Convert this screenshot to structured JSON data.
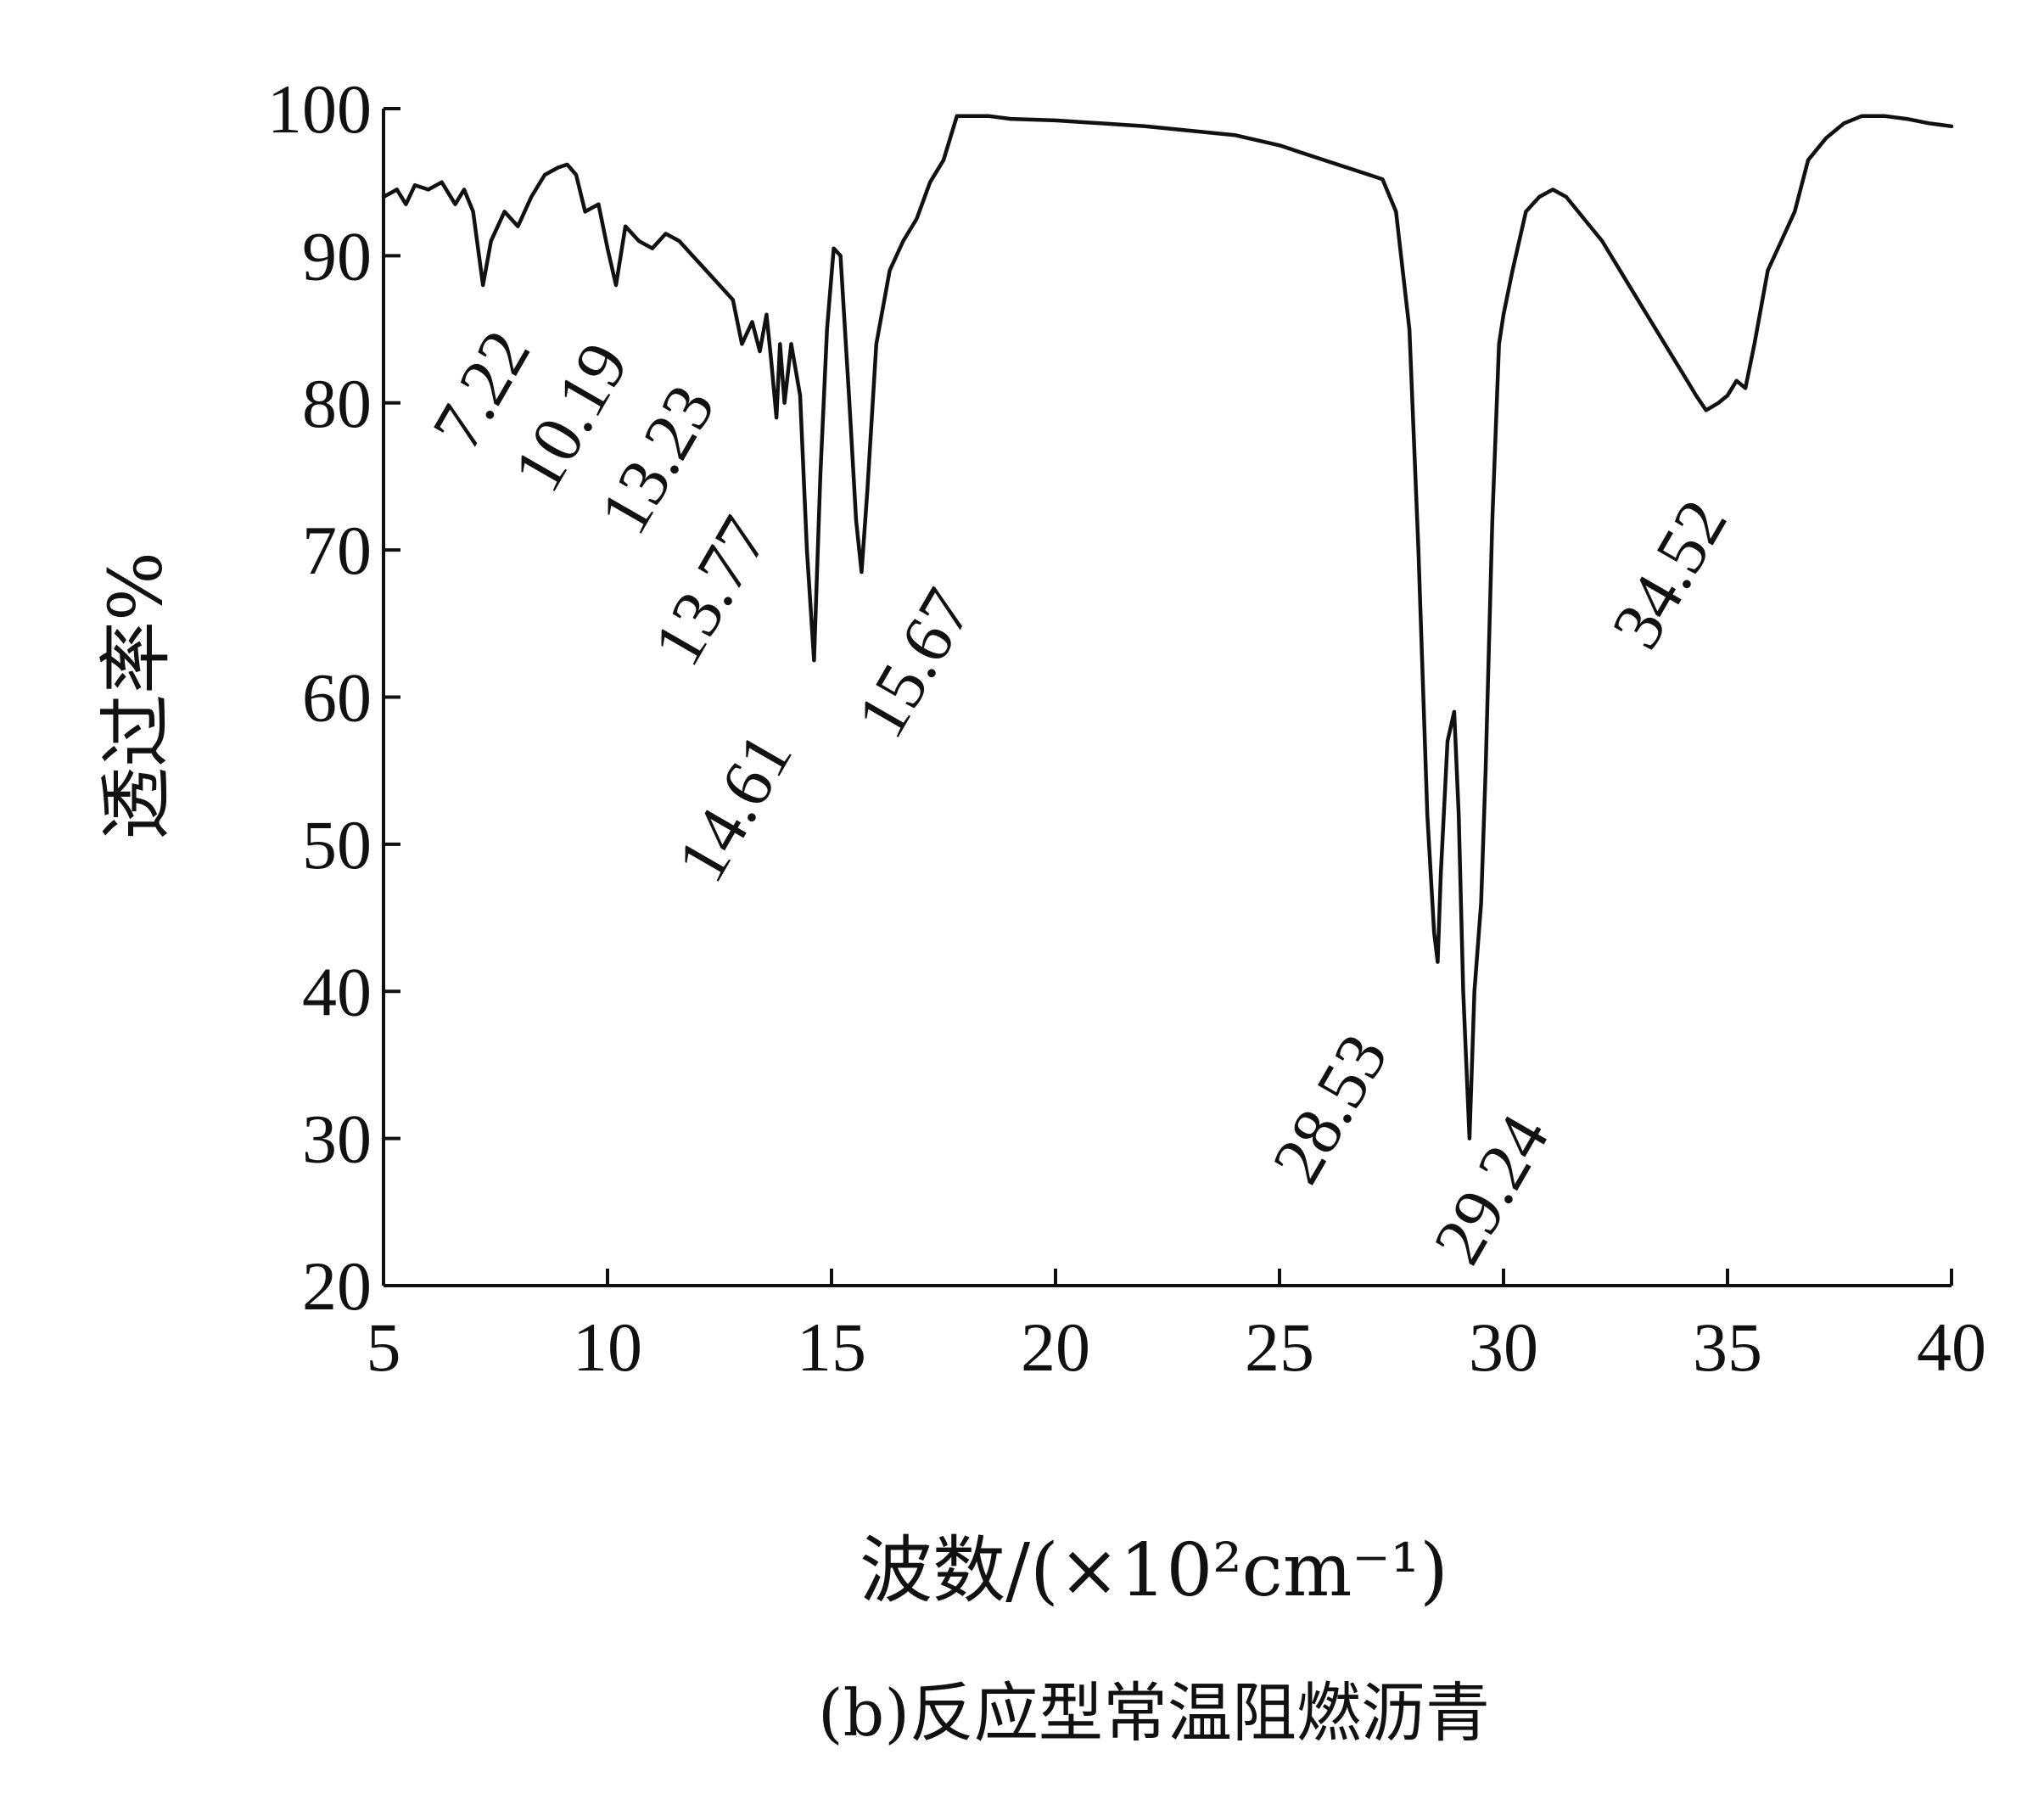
{
  "chart_data": {
    "type": "line",
    "title": "",
    "caption": "(b)反应型常温阻燃沥青",
    "xlabel": "波数/(×10²cm⁻¹)",
    "ylabel": "透过率%",
    "xlim": [
      5,
      40
    ],
    "ylim": [
      20,
      100
    ],
    "xticks": [
      5,
      10,
      15,
      20,
      25,
      30,
      35,
      40
    ],
    "yticks": [
      20,
      30,
      40,
      50,
      60,
      70,
      80,
      90,
      100
    ],
    "grid": false,
    "series": [
      {
        "x": [
          5.0,
          5.3,
          5.5,
          5.7,
          6.0,
          6.3,
          6.6,
          6.8,
          7.0,
          7.22,
          7.4,
          7.7,
          8.0,
          8.3,
          8.6,
          8.9,
          9.1,
          9.3,
          9.5,
          9.8,
          10.0,
          10.19,
          10.4,
          10.7,
          11.0,
          11.3,
          11.6,
          11.9,
          12.2,
          12.5,
          12.8,
          13.0,
          13.23,
          13.4,
          13.55,
          13.65,
          13.77,
          13.85,
          13.95,
          14.1,
          14.3,
          14.45,
          14.61,
          14.75,
          14.9,
          15.05,
          15.2,
          15.4,
          15.55,
          15.67,
          15.8,
          16.0,
          16.3,
          16.6,
          16.9,
          17.2,
          17.5,
          17.8,
          18.0,
          18.5,
          19.0,
          20.0,
          21.0,
          22.0,
          23.0,
          24.0,
          25.0,
          26.0,
          26.5,
          27.0,
          27.3,
          27.6,
          27.9,
          28.1,
          28.3,
          28.45,
          28.53,
          28.6,
          28.75,
          28.9,
          29.0,
          29.1,
          29.24,
          29.35,
          29.5,
          29.6,
          29.75,
          29.9,
          30.0,
          30.2,
          30.5,
          30.8,
          31.1,
          31.4,
          31.8,
          32.2,
          32.6,
          33.0,
          33.4,
          33.8,
          34.1,
          34.3,
          34.52,
          34.8,
          35.0,
          35.2,
          35.4,
          35.6,
          35.9,
          36.2,
          36.5,
          36.8,
          37.2,
          37.6,
          38.0,
          38.5,
          39.0,
          39.5,
          40.0
        ],
        "y": [
          94,
          94.5,
          93.5,
          94.8,
          94.5,
          95,
          93.5,
          94.5,
          93,
          88,
          91,
          93,
          92,
          94,
          95.5,
          96,
          96.2,
          95.5,
          93,
          93.5,
          90.5,
          88,
          92,
          91,
          90.5,
          91.5,
          91,
          90,
          89,
          88,
          87,
          84,
          85.5,
          83.5,
          86,
          83,
          79,
          84,
          80,
          84,
          80.5,
          70,
          62.5,
          75,
          85,
          90.5,
          90,
          80,
          72,
          68.5,
          74,
          84,
          89,
          91,
          92.5,
          95,
          96.5,
          99.5,
          99.5,
          99.5,
          99.3,
          99.2,
          99,
          98.8,
          98.5,
          98.2,
          97.5,
          96.5,
          96,
          95.5,
          95.2,
          93,
          85,
          70,
          52,
          44,
          42,
          48,
          57,
          59,
          52,
          40,
          30,
          40,
          46,
          55,
          72,
          84,
          86,
          89,
          93,
          94,
          94.5,
          94,
          92.5,
          91,
          89,
          87,
          85,
          83,
          81.5,
          80.5,
          79.5,
          80,
          80.5,
          81.5,
          81,
          84,
          89,
          91,
          93,
          96.5,
          98,
          99,
          99.5,
          99.5,
          99.3,
          99,
          98.8
        ],
        "color": "#111111"
      }
    ],
    "annotations": [
      {
        "text": "7.22",
        "x": 7.22
      },
      {
        "text": "10.19",
        "x": 10.19
      },
      {
        "text": "13.23",
        "x": 13.23
      },
      {
        "text": "13.77",
        "x": 13.77
      },
      {
        "text": "14.61",
        "x": 14.61
      },
      {
        "text": "15.67",
        "x": 15.67
      },
      {
        "text": "28.53",
        "x": 28.53
      },
      {
        "text": "29.24",
        "x": 29.24
      },
      {
        "text": "34.52",
        "x": 34.52
      }
    ]
  }
}
